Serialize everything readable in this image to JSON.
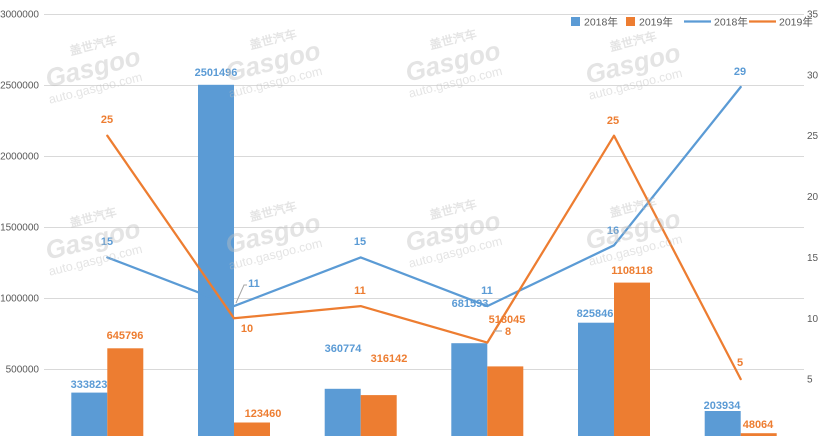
{
  "watermark": {
    "cn": "盖世汽车",
    "brand": "Gasgoo",
    "url": "auto.gasgoo.com"
  },
  "chart_data": {
    "type": "bar",
    "legend": "top-right",
    "grid": true,
    "y_left": {
      "lim": [
        0,
        3000000
      ],
      "ticks": [
        500000,
        1000000,
        1500000,
        2000000,
        2500000,
        3000000
      ]
    },
    "y_right": {
      "lim": [
        0,
        35
      ],
      "ticks": [
        5,
        10,
        15,
        20,
        25,
        30,
        35
      ]
    },
    "series": [
      {
        "name": "2018年",
        "type": "bar",
        "axis": "left",
        "color": "#5B9BD5",
        "values": [
          333823,
          2501496,
          360774,
          681593,
          825846,
          203934
        ]
      },
      {
        "name": "2019年",
        "type": "bar",
        "axis": "left",
        "color": "#ED7D31",
        "values": [
          645796,
          123460,
          316142,
          518045,
          1108118,
          48064
        ]
      },
      {
        "name": "2018年",
        "type": "line",
        "axis": "right",
        "color": "#5B9BD5",
        "values": [
          15,
          11,
          15,
          11,
          16,
          29
        ]
      },
      {
        "name": "2019年",
        "type": "line",
        "axis": "right",
        "color": "#ED7D31",
        "values": [
          25,
          10,
          11,
          8,
          25,
          5
        ]
      }
    ]
  }
}
